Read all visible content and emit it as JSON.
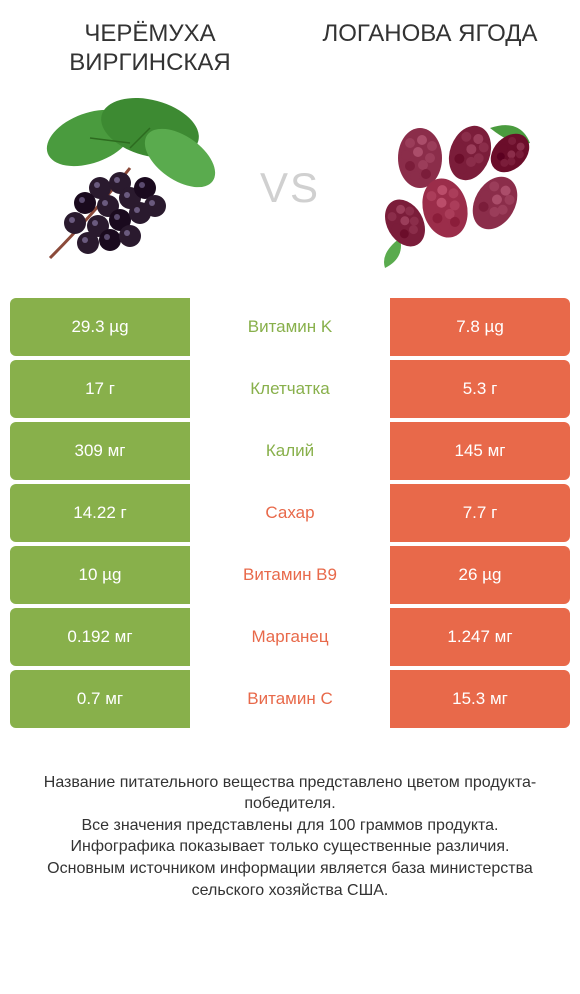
{
  "titles": {
    "left": "ЧЕРЁМУХА ВИРГИНСКАЯ",
    "right": "ЛОГАНОВА ЯГОДА",
    "vs": "VS"
  },
  "colors": {
    "left_bg": "#88b04b",
    "right_bg": "#e8694a",
    "mid_text_left": "#88b04b",
    "mid_text_right": "#e8694a",
    "text_white": "#ffffff",
    "footer_text": "#333333"
  },
  "rows": [
    {
      "left": "29.3 µg",
      "mid": "Витамин K",
      "right": "7.8 µg",
      "winner": "left"
    },
    {
      "left": "17 г",
      "mid": "Клетчатка",
      "right": "5.3 г",
      "winner": "left"
    },
    {
      "left": "309 мг",
      "mid": "Калий",
      "right": "145 мг",
      "winner": "left"
    },
    {
      "left": "14.22 г",
      "mid": "Сахар",
      "right": "7.7 г",
      "winner": "right"
    },
    {
      "left": "10 µg",
      "mid": "Витамин B9",
      "right": "26 µg",
      "winner": "right"
    },
    {
      "left": "0.192 мг",
      "mid": "Марганец",
      "right": "1.247 мг",
      "winner": "right"
    },
    {
      "left": "0.7 мг",
      "mid": "Витамин C",
      "right": "15.3 мг",
      "winner": "right"
    }
  ],
  "footer": {
    "line1": "Название питательного вещества представлено цветом продукта-победителя.",
    "line2": "Все значения представлены для 100 граммов продукта.",
    "line3": "Инфографика показывает только существенные различия.",
    "line4": "Основным источником информации является база министерства сельского хозяйства США."
  },
  "illustration": {
    "chokecherry": {
      "leaf_color": "#4a9b3e",
      "leaf_dark": "#2d6b1f",
      "berry_color": "#2a1a2e",
      "berry_highlight": "#5a4a6e",
      "stem_color": "#8b4a3a"
    },
    "loganberry": {
      "berry_color": "#9b2d4a",
      "berry_dark": "#6b1a33",
      "berry_light": "#c8495f",
      "leaf_color": "#4a9b3e"
    }
  }
}
